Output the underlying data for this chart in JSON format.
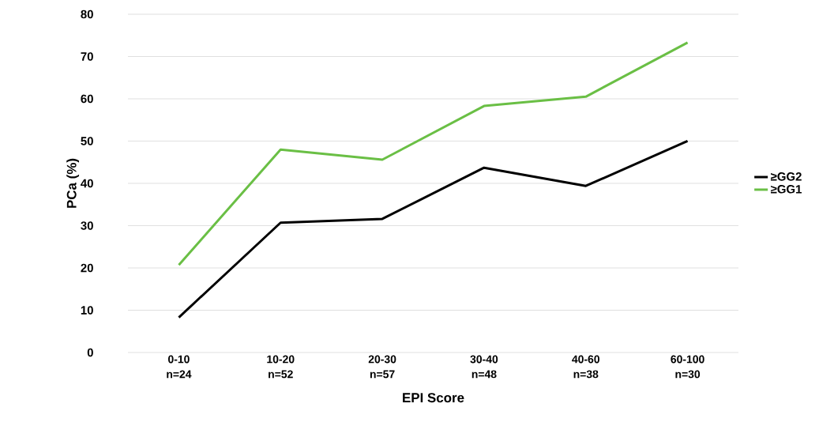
{
  "chart_data": {
    "type": "line",
    "xlabel": "EPI Score",
    "ylabel": "PCa (%)",
    "categories": [
      "0-10 n=24",
      "10-20 n=52",
      "20-30 n=57",
      "30-40 n=48",
      "40-60 n=38",
      "60-100 n=30"
    ],
    "series": [
      {
        "name": "≥GG2",
        "color": "#000000",
        "values": [
          8.3,
          30.7,
          31.6,
          43.7,
          39.4,
          50.0
        ]
      },
      {
        "name": "≥GG1",
        "color": "#6abf45",
        "values": [
          20.7,
          48.0,
          45.6,
          58.3,
          60.5,
          73.3
        ]
      }
    ],
    "ylim": [
      0,
      80
    ],
    "yticks": [
      0,
      10,
      20,
      30,
      40,
      50,
      60,
      70,
      80
    ],
    "grid": "y",
    "legend": "right",
    "marker": "none",
    "line_style": "solid"
  }
}
